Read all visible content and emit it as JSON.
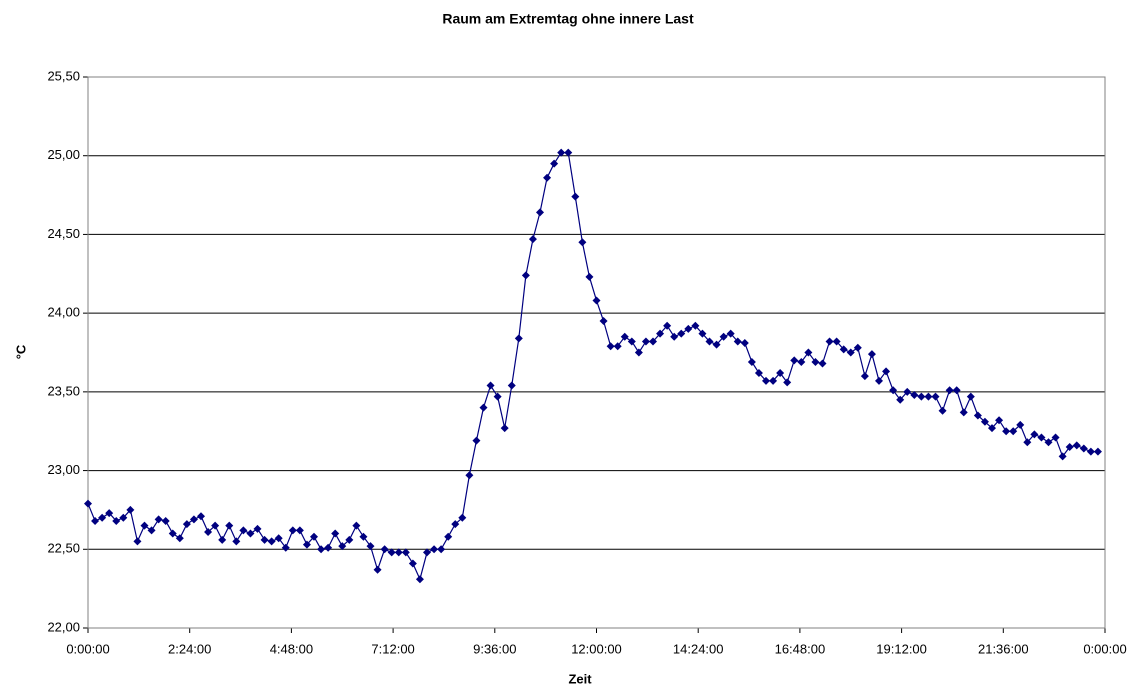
{
  "chart_data": {
    "type": "line",
    "title": "Raum am Extremtag ohne innere Last",
    "x_label": "Zeit",
    "y_label": "°C",
    "x": [
      0,
      10,
      20,
      30,
      40,
      50,
      60,
      70,
      80,
      90,
      100,
      110,
      120,
      130,
      140,
      150,
      160,
      170,
      180,
      190,
      200,
      210,
      220,
      230,
      240,
      250,
      260,
      270,
      280,
      290,
      300,
      310,
      320,
      330,
      340,
      350,
      360,
      370,
      380,
      390,
      400,
      410,
      420,
      430,
      440,
      450,
      460,
      470,
      480,
      490,
      500,
      510,
      520,
      530,
      540,
      550,
      560,
      570,
      580,
      590,
      600,
      610,
      620,
      630,
      640,
      650,
      660,
      670,
      680,
      690,
      700,
      710,
      720,
      730,
      740,
      750,
      760,
      770,
      780,
      790,
      800,
      810,
      820,
      830,
      840,
      850,
      860,
      870,
      880,
      890,
      900,
      910,
      920,
      930,
      940,
      950,
      960,
      970,
      980,
      990,
      1000,
      1010,
      1020,
      1030,
      1040,
      1050,
      1060,
      1070,
      1080,
      1090,
      1100,
      1110,
      1120,
      1130,
      1140,
      1150,
      1160,
      1170,
      1180,
      1190,
      1200,
      1210,
      1220,
      1230,
      1240,
      1250,
      1260,
      1270,
      1280,
      1290,
      1300,
      1310,
      1320,
      1330,
      1340,
      1350,
      1360,
      1370,
      1380,
      1390,
      1400,
      1410,
      1420,
      1430
    ],
    "series": [
      {
        "name": "°C",
        "color": "#000080",
        "values": [
          22.79,
          22.68,
          22.7,
          22.73,
          22.68,
          22.7,
          22.75,
          22.55,
          22.65,
          22.62,
          22.69,
          22.68,
          22.6,
          22.57,
          22.66,
          22.69,
          22.71,
          22.61,
          22.65,
          22.56,
          22.65,
          22.55,
          22.62,
          22.6,
          22.63,
          22.56,
          22.55,
          22.57,
          22.51,
          22.62,
          22.62,
          22.53,
          22.58,
          22.5,
          22.51,
          22.6,
          22.52,
          22.56,
          22.65,
          22.58,
          22.52,
          22.37,
          22.5,
          22.48,
          22.48,
          22.48,
          22.41,
          22.31,
          22.48,
          22.5,
          22.5,
          22.58,
          22.66,
          22.7,
          22.97,
          23.19,
          23.4,
          23.54,
          23.47,
          23.27,
          23.54,
          23.84,
          24.24,
          24.47,
          24.64,
          24.86,
          24.95,
          25.02,
          25.02,
          24.74,
          24.45,
          24.23,
          24.08,
          23.95,
          23.79,
          23.79,
          23.85,
          23.82,
          23.75,
          23.82,
          23.82,
          23.87,
          23.92,
          23.85,
          23.87,
          23.9,
          23.92,
          23.87,
          23.82,
          23.8,
          23.85,
          23.87,
          23.82,
          23.81,
          23.69,
          23.62,
          23.57,
          23.57,
          23.62,
          23.56,
          23.7,
          23.69,
          23.75,
          23.69,
          23.68,
          23.82,
          23.82,
          23.77,
          23.75,
          23.78,
          23.6,
          23.74,
          23.57,
          23.63,
          23.51,
          23.45,
          23.5,
          23.48,
          23.47,
          23.47,
          23.47,
          23.38,
          23.51,
          23.51,
          23.37,
          23.47,
          23.35,
          23.31,
          23.27,
          23.32,
          23.25,
          23.25,
          23.29,
          23.18,
          23.23,
          23.21,
          23.18,
          23.21,
          23.09,
          23.15,
          23.16,
          23.14,
          23.12,
          23.12
        ]
      }
    ],
    "xlim": [
      0,
      1440
    ],
    "xticks": [
      {
        "value": 0,
        "label": "0:00:00"
      },
      {
        "value": 144,
        "label": "2:24:00"
      },
      {
        "value": 288,
        "label": "4:48:00"
      },
      {
        "value": 432,
        "label": "7:12:00"
      },
      {
        "value": 576,
        "label": "9:36:00"
      },
      {
        "value": 720,
        "label": "12:00:00"
      },
      {
        "value": 864,
        "label": "14:24:00"
      },
      {
        "value": 1008,
        "label": "16:48:00"
      },
      {
        "value": 1152,
        "label": "19:12:00"
      },
      {
        "value": 1296,
        "label": "21:36:00"
      },
      {
        "value": 1440,
        "label": "0:00:00"
      }
    ],
    "ylim": [
      22,
      25.5
    ],
    "yticks": [
      {
        "value": 22,
        "label": "22,00"
      },
      {
        "value": 22.5,
        "label": "22,50"
      },
      {
        "value": 23,
        "label": "23,00"
      },
      {
        "value": 23.5,
        "label": "23,50"
      },
      {
        "value": 24,
        "label": "24,00"
      },
      {
        "value": 24.5,
        "label": "24,50"
      },
      {
        "value": 25,
        "label": "25,00"
      },
      {
        "value": 25.5,
        "label": "25,50"
      }
    ],
    "grid": true
  }
}
